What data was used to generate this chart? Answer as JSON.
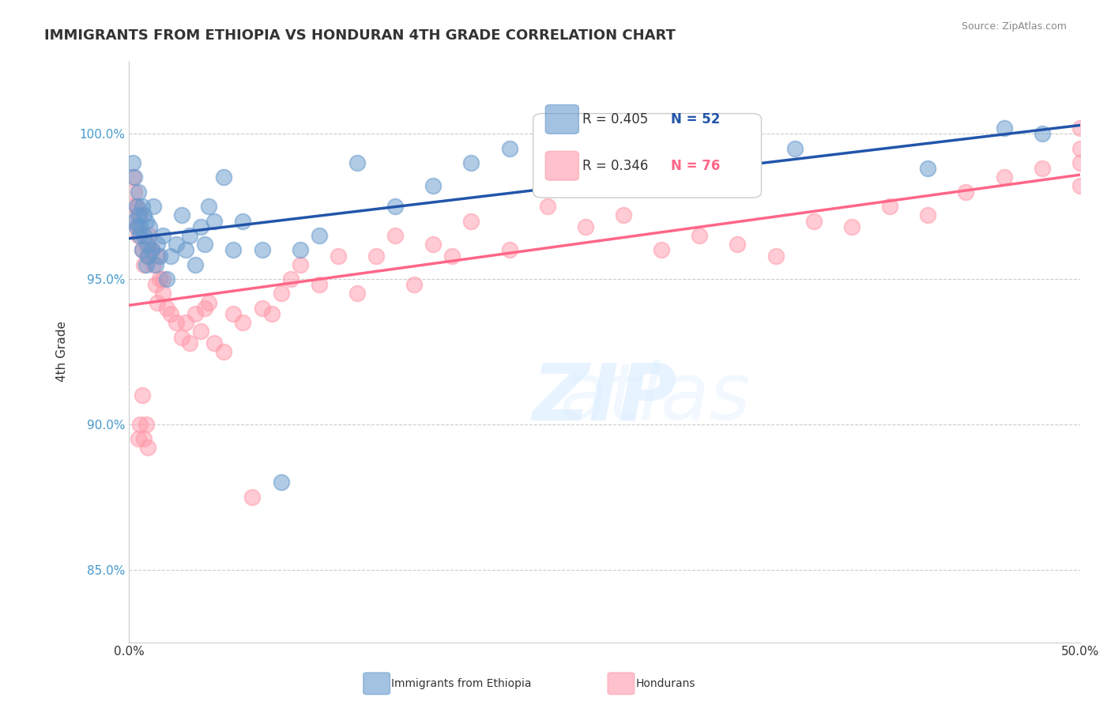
{
  "title": "IMMIGRANTS FROM ETHIOPIA VS HONDURAN 4TH GRADE CORRELATION CHART",
  "source": "Source: ZipAtlas.com",
  "xlabel": "",
  "ylabel": "4th Grade",
  "xlim": [
    0.0,
    0.5
  ],
  "ylim": [
    0.825,
    1.025
  ],
  "xticks": [
    0.0,
    0.1,
    0.2,
    0.3,
    0.4,
    0.5
  ],
  "xticklabels": [
    "0.0%",
    "",
    "",
    "",
    "",
    "50.0%"
  ],
  "yticks": [
    0.85,
    0.9,
    0.95,
    1.0
  ],
  "yticklabels": [
    "85.0%",
    "90.0%",
    "95.0%",
    "100.0%"
  ],
  "blue_color": "#6699CC",
  "pink_color": "#FF99AA",
  "blue_line_color": "#2255AA",
  "pink_line_color": "#FF6688",
  "grid_color": "#CCCCCC",
  "background_color": "#FFFFFF",
  "watermark": "ZIPatlas",
  "legend_r_blue": "R = 0.405",
  "legend_n_blue": "N = 52",
  "legend_r_pink": "R = 0.346",
  "legend_n_pink": "N = 76",
  "blue_scatter_x": [
    0.002,
    0.003,
    0.003,
    0.004,
    0.004,
    0.005,
    0.005,
    0.006,
    0.006,
    0.007,
    0.007,
    0.008,
    0.008,
    0.009,
    0.009,
    0.01,
    0.01,
    0.011,
    0.012,
    0.013,
    0.014,
    0.015,
    0.016,
    0.018,
    0.02,
    0.022,
    0.025,
    0.028,
    0.03,
    0.032,
    0.035,
    0.038,
    0.04,
    0.042,
    0.045,
    0.05,
    0.055,
    0.06,
    0.07,
    0.08,
    0.09,
    0.1,
    0.12,
    0.14,
    0.16,
    0.18,
    0.2,
    0.25,
    0.35,
    0.42,
    0.46,
    0.48
  ],
  "blue_scatter_y": [
    0.99,
    0.985,
    0.97,
    0.975,
    0.968,
    0.98,
    0.972,
    0.965,
    0.968,
    0.975,
    0.96,
    0.972,
    0.965,
    0.97,
    0.955,
    0.962,
    0.958,
    0.968,
    0.96,
    0.975,
    0.955,
    0.962,
    0.958,
    0.965,
    0.95,
    0.958,
    0.962,
    0.972,
    0.96,
    0.965,
    0.955,
    0.968,
    0.962,
    0.975,
    0.97,
    0.985,
    0.96,
    0.97,
    0.96,
    0.88,
    0.96,
    0.965,
    0.99,
    0.975,
    0.982,
    0.99,
    0.995,
    0.998,
    0.995,
    0.988,
    1.002,
    1.0
  ],
  "pink_scatter_x": [
    0.002,
    0.003,
    0.004,
    0.005,
    0.006,
    0.007,
    0.008,
    0.009,
    0.01,
    0.011,
    0.012,
    0.013,
    0.014,
    0.015,
    0.016,
    0.018,
    0.02,
    0.022,
    0.025,
    0.028,
    0.03,
    0.032,
    0.035,
    0.038,
    0.04,
    0.042,
    0.045,
    0.05,
    0.055,
    0.06,
    0.065,
    0.07,
    0.075,
    0.08,
    0.085,
    0.09,
    0.1,
    0.11,
    0.12,
    0.13,
    0.14,
    0.15,
    0.16,
    0.17,
    0.18,
    0.2,
    0.22,
    0.24,
    0.26,
    0.28,
    0.3,
    0.32,
    0.34,
    0.36,
    0.38,
    0.4,
    0.42,
    0.44,
    0.46,
    0.48,
    0.5,
    0.5,
    0.5,
    0.5,
    0.002,
    0.003,
    0.004,
    0.005,
    0.006,
    0.007,
    0.008,
    0.009,
    0.01,
    0.012,
    0.015,
    0.018
  ],
  "pink_scatter_y": [
    0.97,
    0.975,
    0.968,
    0.965,
    0.972,
    0.96,
    0.955,
    0.962,
    0.958,
    0.965,
    0.96,
    0.955,
    0.948,
    0.942,
    0.95,
    0.945,
    0.94,
    0.938,
    0.935,
    0.93,
    0.935,
    0.928,
    0.938,
    0.932,
    0.94,
    0.942,
    0.928,
    0.925,
    0.938,
    0.935,
    0.875,
    0.94,
    0.938,
    0.945,
    0.95,
    0.955,
    0.948,
    0.958,
    0.945,
    0.958,
    0.965,
    0.948,
    0.962,
    0.958,
    0.97,
    0.96,
    0.975,
    0.968,
    0.972,
    0.96,
    0.965,
    0.962,
    0.958,
    0.97,
    0.968,
    0.975,
    0.972,
    0.98,
    0.985,
    0.988,
    1.002,
    0.982,
    0.99,
    0.995,
    0.985,
    0.98,
    0.975,
    0.895,
    0.9,
    0.91,
    0.895,
    0.9,
    0.892,
    0.96,
    0.958,
    0.95
  ]
}
